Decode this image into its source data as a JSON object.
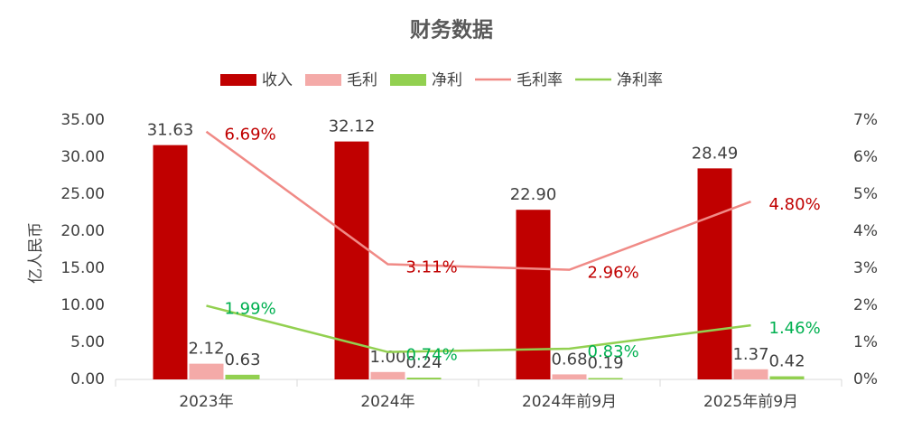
{
  "chart_data": {
    "type": "bar",
    "title": "财务数据",
    "y_label": "亿人民币",
    "categories": [
      "2023年",
      "2024年",
      "2024年前9月",
      "2025年前9月"
    ],
    "series": [
      {
        "name": "收入",
        "type": "bar",
        "color": "#c00000",
        "values": [
          31.63,
          32.12,
          22.9,
          28.49
        ],
        "value_labels": [
          "31.63",
          "32.12",
          "22.90",
          "28.49"
        ]
      },
      {
        "name": "毛利",
        "type": "bar",
        "color": "#f4aaa8",
        "values": [
          2.12,
          1.0,
          0.68,
          1.37
        ],
        "value_labels": [
          "2.12",
          "1.00",
          "0.68",
          "1.37"
        ]
      },
      {
        "name": "净利",
        "type": "bar",
        "color": "#92d050",
        "values": [
          0.63,
          0.24,
          0.19,
          0.42
        ],
        "value_labels": [
          "0.63",
          "0.24",
          "0.19",
          "0.42"
        ]
      },
      {
        "name": "毛利率",
        "type": "line",
        "axis": "y2",
        "color": "#f08a86",
        "label_color": "#c00000",
        "values": [
          6.69,
          3.11,
          2.96,
          4.8
        ],
        "value_labels": [
          "6.69%",
          "3.11%",
          "2.96%",
          "4.80%"
        ]
      },
      {
        "name": "净利率",
        "type": "line",
        "axis": "y2",
        "color": "#92d050",
        "label_color": "#00b050",
        "values": [
          1.99,
          0.74,
          0.83,
          1.46
        ],
        "value_labels": [
          "1.99%",
          "0.74%",
          "0.83%",
          "1.46%"
        ]
      }
    ],
    "ylim": [
      0,
      35
    ],
    "yticks": [
      {
        "value": 0,
        "label": "0.00"
      },
      {
        "value": 5,
        "label": "5.00"
      },
      {
        "value": 10,
        "label": "10.00"
      },
      {
        "value": 15,
        "label": "15.00"
      },
      {
        "value": 20,
        "label": "20.00"
      },
      {
        "value": 25,
        "label": "25.00"
      },
      {
        "value": 30,
        "label": "30.00"
      },
      {
        "value": 35,
        "label": "35.00"
      }
    ],
    "y2lim": [
      0,
      7
    ],
    "y2ticks": [
      {
        "value": 0,
        "label": "0%"
      },
      {
        "value": 1,
        "label": "1%"
      },
      {
        "value": 2,
        "label": "2%"
      },
      {
        "value": 3,
        "label": "3%"
      },
      {
        "value": 4,
        "label": "4%"
      },
      {
        "value": 5,
        "label": "5%"
      },
      {
        "value": 6,
        "label": "6%"
      },
      {
        "value": 7,
        "label": "7%"
      }
    ],
    "legend": "top"
  }
}
